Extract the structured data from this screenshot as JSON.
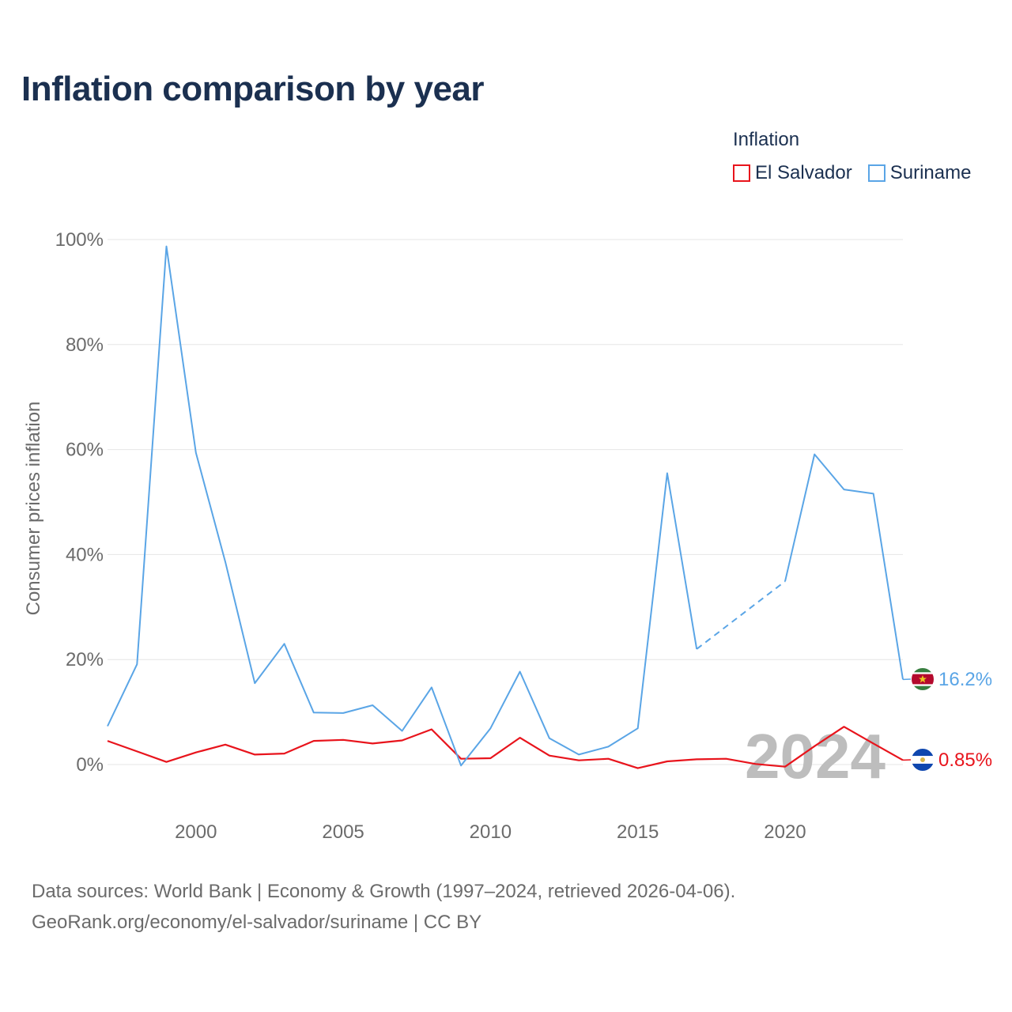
{
  "chart_data": {
    "type": "line",
    "title": "Inflation comparison by year",
    "legend_title": "Inflation",
    "ylabel": "Consumer prices inflation",
    "xlabel": "",
    "ylim": [
      -10,
      100
    ],
    "xlim": [
      1997,
      2024
    ],
    "yticks": [
      0,
      20,
      40,
      60,
      80,
      100
    ],
    "ytick_labels": [
      "0%",
      "20%",
      "40%",
      "60%",
      "80%",
      "100%"
    ],
    "xticks": [
      2000,
      2005,
      2010,
      2015,
      2020
    ],
    "xtick_labels": [
      "2000",
      "2005",
      "2010",
      "2015",
      "2020"
    ],
    "year_watermark": "2024",
    "series": [
      {
        "name": "El Salvador",
        "color": "#e8141c",
        "end_label": "0.85%",
        "flag": "el-salvador-flag-icon",
        "points": [
          [
            1997,
            4.5
          ],
          [
            1998,
            2.5
          ],
          [
            1999,
            0.5
          ],
          [
            2000,
            2.3
          ],
          [
            2001,
            3.8
          ],
          [
            2002,
            1.9
          ],
          [
            2003,
            2.1
          ],
          [
            2004,
            4.5
          ],
          [
            2005,
            4.7
          ],
          [
            2006,
            4.0
          ],
          [
            2007,
            4.6
          ],
          [
            2008,
            6.7
          ],
          [
            2009,
            1.1
          ],
          [
            2010,
            1.2
          ],
          [
            2011,
            5.1
          ],
          [
            2012,
            1.7
          ],
          [
            2013,
            0.8
          ],
          [
            2014,
            1.1
          ],
          [
            2015,
            -0.7
          ],
          [
            2016,
            0.6
          ],
          [
            2017,
            1.0
          ],
          [
            2018,
            1.1
          ],
          [
            2019,
            0.1
          ],
          [
            2020,
            -0.4
          ],
          [
            2021,
            3.5
          ],
          [
            2022,
            7.2
          ],
          [
            2023,
            4.0
          ],
          [
            2024,
            0.85
          ]
        ]
      },
      {
        "name": "Suriname",
        "color": "#5aa5e6",
        "end_label": "16.2%",
        "flag": "suriname-flag-icon",
        "points": [
          [
            1997,
            7.3
          ],
          [
            1998,
            19.1
          ],
          [
            1999,
            98.7
          ],
          [
            2000,
            59.4
          ],
          [
            2001,
            38.6
          ],
          [
            2002,
            15.5
          ],
          [
            2003,
            23.0
          ],
          [
            2004,
            9.9
          ],
          [
            2005,
            9.8
          ],
          [
            2006,
            11.3
          ],
          [
            2007,
            6.4
          ],
          [
            2008,
            14.7
          ],
          [
            2009,
            -0.2
          ],
          [
            2010,
            6.9
          ],
          [
            2011,
            17.7
          ],
          [
            2012,
            5.0
          ],
          [
            2013,
            1.9
          ],
          [
            2014,
            3.4
          ],
          [
            2015,
            6.9
          ],
          [
            2016,
            55.5
          ],
          [
            2017,
            22.0
          ],
          [
            2020,
            34.9
          ],
          [
            2021,
            59.1
          ],
          [
            2022,
            52.4
          ],
          [
            2023,
            51.6
          ],
          [
            2024,
            16.2
          ]
        ],
        "dashed_segment": [
          2017,
          2020
        ]
      }
    ]
  },
  "source": {
    "line1": "Data sources: World Bank | Economy & Growth (1997–2024, retrieved 2026-04-06).",
    "line2": "GeoRank.org/economy/el-salvador/suriname | CC BY"
  }
}
